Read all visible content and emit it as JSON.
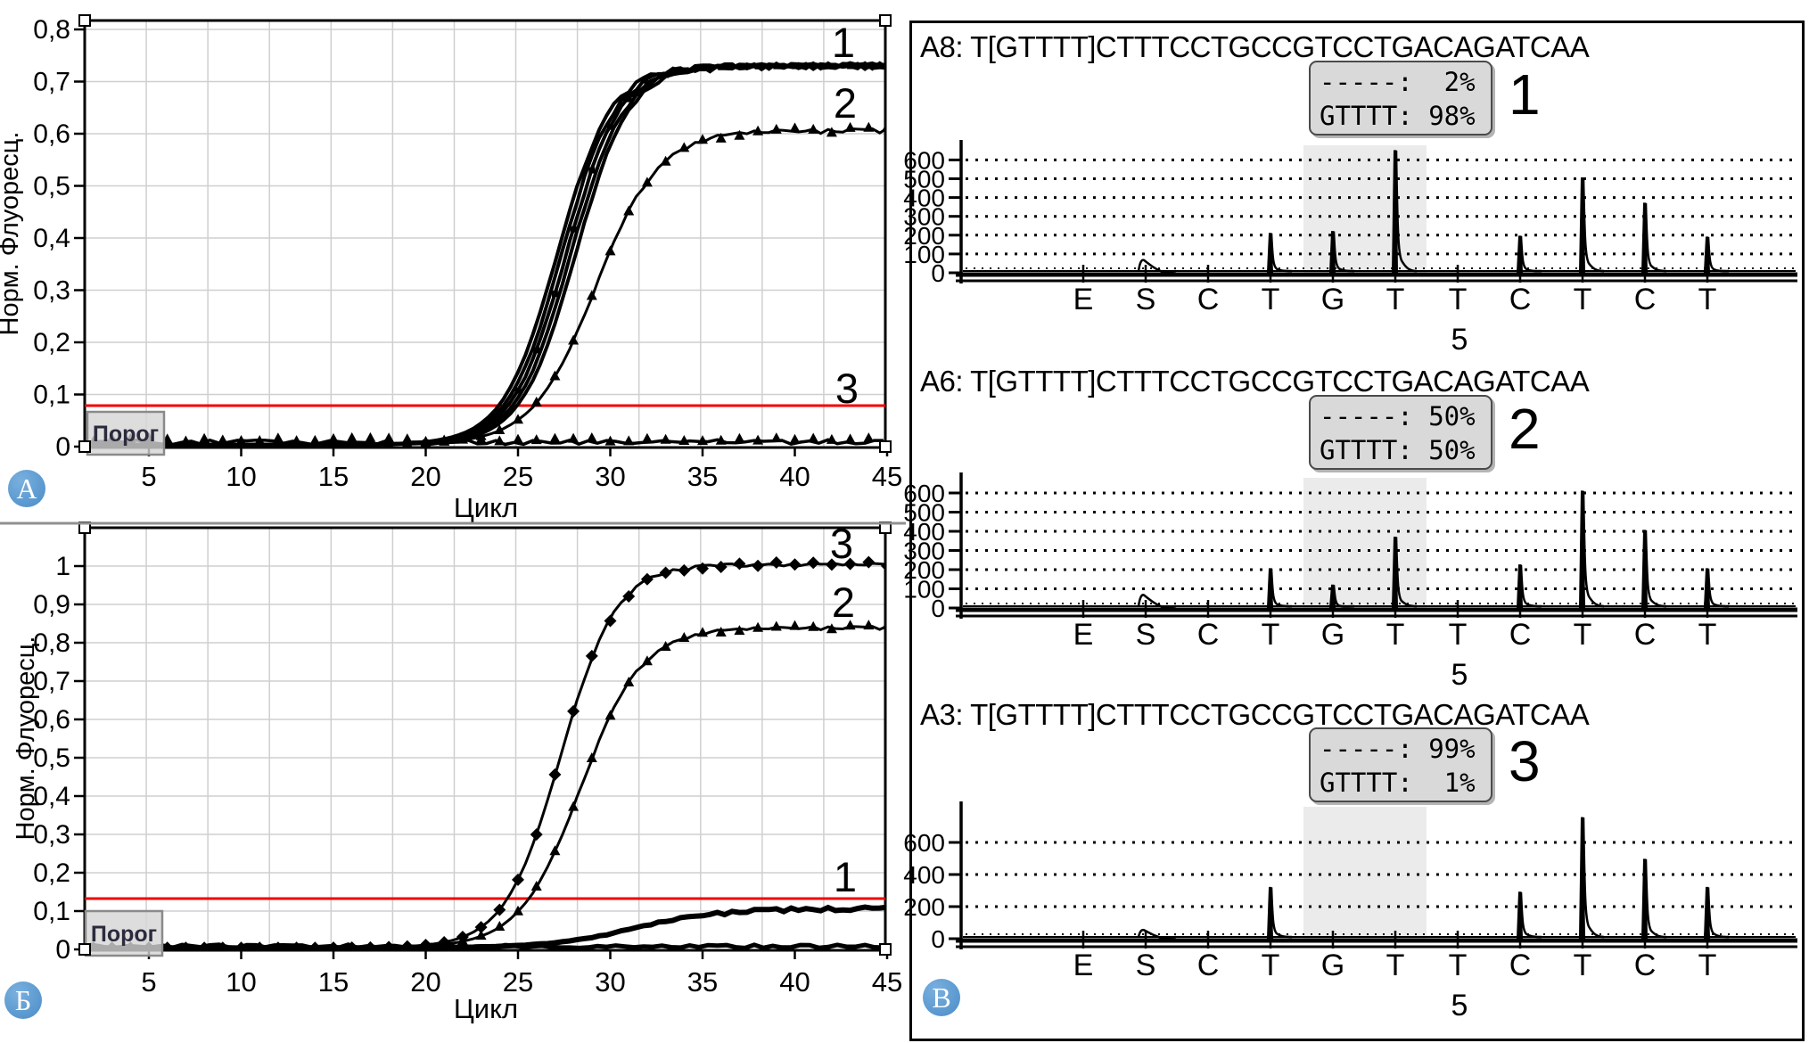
{
  "figure": {
    "badges": [
      {
        "label": "А"
      },
      {
        "label": "Б"
      },
      {
        "label": "В"
      }
    ]
  },
  "chart_data": [
    {
      "id": "qpcr_a",
      "type": "line",
      "panel_label": "А",
      "xlabel": "Цикл",
      "ylabel": "Норм. Флуоресц.",
      "xlim": [
        1.8,
        45.2
      ],
      "ylim": [
        0,
        0.82
      ],
      "x_ticks": [
        5,
        10,
        15,
        20,
        25,
        30,
        35,
        40,
        45
      ],
      "y_ticks": [
        {
          "v": 0.8,
          "label": "0,8"
        },
        {
          "v": 0.7,
          "label": "0,7"
        },
        {
          "v": 0.6,
          "label": "0,6"
        },
        {
          "v": 0.5,
          "label": "0,5"
        },
        {
          "v": 0.4,
          "label": "0,4"
        },
        {
          "v": 0.3,
          "label": "0,3"
        },
        {
          "v": 0.2,
          "label": "0,2"
        },
        {
          "v": 0.1,
          "label": "0,1"
        },
        {
          "v": 0,
          "label": "0"
        }
      ],
      "grid": true,
      "threshold": {
        "label": "Порог",
        "value": 0.08,
        "color": "#f20000"
      },
      "series": [
        {
          "name": "1",
          "kind": "sigmoid-bundle",
          "plateau": 0.726,
          "ct": 27.6,
          "slope": 1.45,
          "marker": "square"
        },
        {
          "name": "2",
          "kind": "sigmoid",
          "plateau": 0.602,
          "ct": 29.2,
          "slope": 1.7,
          "marker": "triangle"
        },
        {
          "name": "3",
          "kind": "flat",
          "level": 0.007,
          "marker": "triangle"
        }
      ]
    },
    {
      "id": "qpcr_b",
      "type": "line",
      "panel_label": "Б",
      "xlabel": "Цикл",
      "ylabel": "Норм. Флуоресц.",
      "xlim": [
        1.8,
        45.2
      ],
      "ylim": [
        0,
        1.1
      ],
      "x_ticks": [
        5,
        10,
        15,
        20,
        25,
        30,
        35,
        40,
        45
      ],
      "y_ticks": [
        {
          "v": 1.0,
          "label": "1"
        },
        {
          "v": 0.9,
          "label": "0,9"
        },
        {
          "v": 0.8,
          "label": "0,8"
        },
        {
          "v": 0.7,
          "label": "0,7"
        },
        {
          "v": 0.6,
          "label": "0,6"
        },
        {
          "v": 0.5,
          "label": "0,5"
        },
        {
          "v": 0.4,
          "label": "0,4"
        },
        {
          "v": 0.3,
          "label": "0,3"
        },
        {
          "v": 0.2,
          "label": "0,2"
        },
        {
          "v": 0.1,
          "label": "0,1"
        },
        {
          "v": 0,
          "label": "0"
        }
      ],
      "grid": true,
      "threshold": {
        "label": "Порог",
        "value": 0.115,
        "color": "#f20000"
      },
      "series": [
        {
          "name": "3",
          "kind": "sigmoid",
          "plateau": 1.0,
          "ct": 27.3,
          "slope": 1.5,
          "marker": "diamond"
        },
        {
          "name": "2",
          "kind": "sigmoid",
          "plateau": 0.835,
          "ct": 28.4,
          "slope": 1.65,
          "marker": "triangle"
        },
        {
          "name": "1",
          "kind": "sigmoid-thick",
          "plateau": 0.102,
          "ct": 31.3,
          "slope": 2.3,
          "marker": "none"
        },
        {
          "name": "",
          "kind": "flat",
          "level": 0.006,
          "marker": "none"
        }
      ]
    },
    {
      "id": "pyro_1",
      "type": "pyrogram",
      "header": "A8: T[GTTTT]CTTTCCTGCCGTCCTGACAGATCAA",
      "legend": {
        "lines": [
          "-----:  2%",
          "GTTTT: 98%"
        ],
        "number": "1"
      },
      "y_ticks": [
        600,
        500,
        400,
        300,
        200,
        100,
        0
      ],
      "dispensations": [
        "E",
        "S",
        "C",
        "T",
        "G",
        "T",
        "T",
        "C",
        "T",
        "C",
        "T"
      ],
      "peak_heights": [
        15,
        75,
        16,
        210,
        220,
        650,
        14,
        195,
        505,
        370,
        190
      ],
      "highlight_dispensations": [
        4,
        5
      ],
      "x_label": "5"
    },
    {
      "id": "pyro_2",
      "type": "pyrogram",
      "header": "A6: T[GTTTT]CTTTCCTGCCGTCCTGACAGATCAA",
      "legend": {
        "lines": [
          "-----: 50%",
          "GTTTT: 50%"
        ],
        "number": "2"
      },
      "y_ticks": [
        600,
        500,
        400,
        300,
        200,
        100,
        0
      ],
      "dispensations": [
        "E",
        "S",
        "C",
        "T",
        "G",
        "T",
        "T",
        "C",
        "T",
        "C",
        "T"
      ],
      "peak_heights": [
        15,
        75,
        16,
        205,
        120,
        370,
        14,
        225,
        610,
        405,
        205
      ],
      "highlight_dispensations": [
        4,
        5
      ],
      "x_label": "5"
    },
    {
      "id": "pyro_3",
      "type": "pyrogram",
      "header": "A3: T[GTTTT]CTTTCCTGCCGTCCTGACAGATCAA",
      "legend": {
        "lines": [
          "-----: 99%",
          "GTTTT:  1%"
        ],
        "number": "3"
      },
      "y_ticks": [
        600,
        400,
        200,
        0
      ],
      "dispensations": [
        "E",
        "S",
        "C",
        "T",
        "G",
        "T",
        "T",
        "C",
        "T",
        "C",
        "T"
      ],
      "peak_heights": [
        10,
        60,
        12,
        320,
        4,
        4,
        12,
        290,
        755,
        495,
        320
      ],
      "highlight_dispensations": [
        4,
        5
      ],
      "x_label": "5"
    }
  ]
}
